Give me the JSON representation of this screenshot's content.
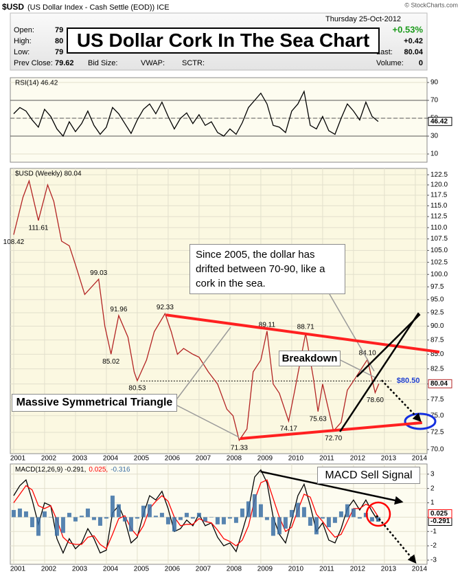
{
  "header": {
    "symbol": "$USD",
    "description": "(US Dollar Index - Cash Settle (EOD)) ICE",
    "copyright": "© StockCharts.com",
    "date": "Thursday 25-Oct-2012",
    "title": "US Dollar Cork In The Sea Chart",
    "fields": [
      {
        "label": "Open:",
        "value": "79"
      },
      {
        "label": "High:",
        "value": "80"
      },
      {
        "label": "Low:",
        "value": "79"
      },
      {
        "label": "Prev Close:",
        "value": "79.62"
      }
    ],
    "mid_fields": [
      "Bid Size:",
      "VWAP:",
      "SCTR:"
    ],
    "change_pct": "+0.53%",
    "change": "+0.42",
    "last_label": "Last:",
    "last": "80.04",
    "volume_label": "Volume:",
    "volume": "0"
  },
  "callouts": [
    "Since 2005, the dollar has drifted between 70-90, like a cork in the sea.",
    "Breakdown",
    "Massive Symmetrical Triangle",
    "MACD Sell Signal"
  ],
  "chart_data": [
    {
      "type": "line",
      "legend": "RSI(14) 46.42",
      "background": "#fdfcf0",
      "grid": true,
      "xlim": [
        2000.89,
        2014.38
      ],
      "ylim": [
        0.8,
        95.4
      ],
      "yticks": [
        90,
        70,
        50,
        30,
        10
      ],
      "levels": [
        {
          "value": 70,
          "style": "solid"
        },
        {
          "value": 50,
          "style": "dashed"
        },
        {
          "value": 30,
          "style": "solid"
        }
      ],
      "x": [
        2001.0,
        2001.2,
        2001.4,
        2001.6,
        2001.8,
        2002.0,
        2002.2,
        2002.4,
        2002.6,
        2002.8,
        2003.0,
        2003.2,
        2003.4,
        2003.6,
        2003.8,
        2004.0,
        2004.2,
        2004.4,
        2004.6,
        2004.8,
        2005.0,
        2005.2,
        2005.4,
        2005.6,
        2005.8,
        2006.0,
        2006.2,
        2006.4,
        2006.6,
        2006.8,
        2007.0,
        2007.2,
        2007.4,
        2007.6,
        2007.8,
        2008.0,
        2008.2,
        2008.4,
        2008.6,
        2008.8,
        2009.0,
        2009.2,
        2009.4,
        2009.6,
        2009.8,
        2010.0,
        2010.2,
        2010.4,
        2010.6,
        2010.8,
        2011.0,
        2011.2,
        2011.4,
        2011.6,
        2011.8,
        2012.0,
        2012.2,
        2012.4,
        2012.6,
        2012.8
      ],
      "series": [
        {
          "name": "RSI(14)",
          "color": "#000000",
          "tag": true,
          "values": [
            55,
            62,
            58,
            48,
            40,
            60,
            52,
            38,
            30,
            46,
            35,
            44,
            58,
            42,
            32,
            40,
            62,
            55,
            44,
            33,
            48,
            60,
            66,
            55,
            68,
            52,
            38,
            50,
            56,
            44,
            54,
            42,
            46,
            34,
            30,
            38,
            32,
            45,
            62,
            70,
            78,
            66,
            42,
            40,
            34,
            58,
            66,
            80,
            42,
            38,
            52,
            36,
            32,
            50,
            66,
            58,
            48,
            68,
            52,
            46.42
          ]
        }
      ]
    },
    {
      "type": "line",
      "legend": "$USD (Weekly) 80.04",
      "background": "#fbf8e1",
      "grid": true,
      "log": true,
      "xlim": [
        2000.89,
        2014.38
      ],
      "ylim": [
        69.42,
        124.1
      ],
      "xticks": [
        2001,
        2002,
        2003,
        2004,
        2005,
        2006,
        2007,
        2008,
        2009,
        2010,
        2011,
        2012,
        2013,
        2014
      ],
      "yticks": [
        {
          "value": 70,
          "label": "70.0"
        },
        72.5,
        {
          "value": 75,
          "label": "75.0"
        },
        77.5,
        {
          "value": 80,
          "label": "80.0"
        },
        82.5,
        {
          "value": 85,
          "label": "85.0"
        },
        87.5,
        {
          "value": 90,
          "label": "90.0"
        },
        92.5,
        {
          "value": 95,
          "label": "95.0"
        },
        97.5,
        {
          "value": 100,
          "label": "100.0"
        },
        102.5,
        {
          "value": 105,
          "label": "105.0"
        },
        107.5,
        {
          "value": 110,
          "label": "110.0"
        },
        112.5,
        {
          "value": 115,
          "label": "115.0"
        },
        117.5,
        {
          "value": 120,
          "label": "120.0"
        },
        122.5
      ],
      "x": [
        2001.0,
        2001.3,
        2001.5,
        2001.8,
        2002.1,
        2002.3,
        2002.55,
        2002.8,
        2003.0,
        2003.3,
        2003.75,
        2003.95,
        2004.15,
        2004.4,
        2004.7,
        2004.9,
        2005.0,
        2005.3,
        2005.55,
        2005.9,
        2006.1,
        2006.3,
        2006.5,
        2006.8,
        2007.0,
        2007.3,
        2007.6,
        2007.9,
        2008.1,
        2008.3,
        2008.55,
        2008.75,
        2009.0,
        2009.2,
        2009.4,
        2009.6,
        2009.9,
        2010.1,
        2010.45,
        2010.7,
        2010.85,
        2011.0,
        2011.35,
        2011.6,
        2011.8,
        2012.0,
        2012.45,
        2012.7,
        2012.82
      ],
      "series": [
        {
          "name": "$USD",
          "color": "#b22222",
          "tag": true,
          "values": [
            108.42,
            117,
            121,
            111.61,
            120,
            116,
            107,
            106,
            102,
            96,
            99.03,
            90,
            85.02,
            91.96,
            88,
            82,
            80.53,
            84,
            89,
            92.33,
            89,
            85,
            86,
            85,
            84.5,
            82,
            80,
            76,
            75,
            71.33,
            73,
            82,
            84,
            89.11,
            80,
            78.5,
            74.17,
            79,
            88.71,
            81,
            75.63,
            80,
            72.7,
            74,
            79,
            80.5,
            84.1,
            78.6,
            80.04
          ]
        }
      ],
      "peak_labels": [
        {
          "x": 2003.75,
          "value": 99.03
        },
        {
          "x": 2004.4,
          "value": 91.96
        },
        {
          "x": 2005.9,
          "value": 92.33
        },
        {
          "x": 2009.2,
          "value": 89.11
        },
        {
          "x": 2010.45,
          "value": 88.71
        },
        {
          "x": 2012.45,
          "value": 84.1,
          "label": "84.10"
        }
      ],
      "trough_labels": [
        {
          "x": 2001.0,
          "value": 108.42
        },
        {
          "x": 2001.8,
          "value": 111.61
        },
        {
          "x": 2004.15,
          "value": 85.02
        },
        {
          "x": 2005.0,
          "value": 80.53
        },
        {
          "x": 2008.3,
          "value": 71.33
        },
        {
          "x": 2009.9,
          "value": 74.17
        },
        {
          "x": 2010.85,
          "value": 75.63
        },
        {
          "x": 2011.35,
          "value": 72.7,
          "label": "72.70"
        },
        {
          "x": 2012.7,
          "value": 78.6,
          "label": "78.60"
        }
      ],
      "reference_line": {
        "x": [
          2005.11,
          2013.22
        ],
        "value": 80.5,
        "label": "$80.50",
        "color": "#1f3fd0"
      },
      "trendlines": [
        {
          "x": [
            2005.93,
            2014.78
          ],
          "y": [
            92.08,
            85.39
          ],
          "color": "#ff2020",
          "style": "solid",
          "width": 4
        },
        {
          "x": [
            2008.33,
            2014.22
          ],
          "y": [
            71.58,
            73.93
          ],
          "color": "#ff2020",
          "style": "solid",
          "width": 4
        },
        {
          "x": [
            2011.56,
            2014.11
          ],
          "y": [
            72.59,
            92.47
          ],
          "color": "#000000",
          "style": "solid",
          "width": 2.5
        },
        {
          "x": [
            2012.11,
            2014.15
          ],
          "y": [
            81.19,
            92.2
          ],
          "color": "#000000",
          "style": "solid",
          "width": 2.5
        },
        {
          "x": [
            2012.91,
            2014.16
          ],
          "y": [
            80.62,
            74.24
          ],
          "color": "#000000",
          "style": "dotted",
          "width": 2.5,
          "arrow": true
        }
      ]
    },
    {
      "type": "line",
      "legend_parts": [
        "MACD(12,26,9) -0.291,",
        "0.025,",
        "-0.316"
      ],
      "background": "#fdfcf0",
      "grid": true,
      "xlim": [
        2000.89,
        2014.38
      ],
      "ylim": [
        -3.29,
        3.71
      ],
      "xticks": [
        2001,
        2002,
        2003,
        2004,
        2005,
        2006,
        2007,
        2008,
        2009,
        2010,
        2011,
        2012,
        2013,
        2014
      ],
      "yticks": [
        3,
        2,
        1,
        0,
        -1,
        -2,
        -3
      ],
      "x": [
        2001.0,
        2001.2,
        2001.4,
        2001.6,
        2001.8,
        2002.0,
        2002.2,
        2002.4,
        2002.6,
        2002.8,
        2003.0,
        2003.2,
        2003.4,
        2003.6,
        2003.8,
        2004.0,
        2004.2,
        2004.4,
        2004.6,
        2004.8,
        2005.0,
        2005.2,
        2005.4,
        2005.6,
        2005.8,
        2006.0,
        2006.2,
        2006.4,
        2006.6,
        2006.8,
        2007.0,
        2007.2,
        2007.4,
        2007.6,
        2007.8,
        2008.0,
        2008.2,
        2008.4,
        2008.6,
        2008.8,
        2009.0,
        2009.2,
        2009.4,
        2009.6,
        2009.8,
        2010.0,
        2010.2,
        2010.4,
        2010.6,
        2010.8,
        2011.0,
        2011.2,
        2011.4,
        2011.6,
        2011.8,
        2012.0,
        2012.2,
        2012.4,
        2012.6,
        2012.8
      ],
      "series": [
        {
          "name": "MACD",
          "color": "#000000",
          "tag": true,
          "values": [
            1.5,
            2.2,
            2.6,
            1.2,
            -0.5,
            1.0,
            0.8,
            -1.5,
            -2.5,
            -1.5,
            -2.2,
            -1.8,
            -0.8,
            -1.5,
            -2.5,
            -2.3,
            0.3,
            0.8,
            -0.2,
            -1.8,
            -1.4,
            0.2,
            1.5,
            1.2,
            1.8,
            0.6,
            -1.0,
            -0.8,
            -0.2,
            -0.6,
            0.2,
            -0.6,
            -0.4,
            -1.4,
            -2.0,
            -1.8,
            -2.4,
            -1.0,
            0.5,
            2.8,
            3.3,
            2.4,
            0.0,
            -1.2,
            -1.8,
            -0.2,
            1.5,
            2.3,
            0.8,
            -1.0,
            -0.4,
            -1.6,
            -1.8,
            -0.8,
            0.6,
            1.2,
            0.5,
            1.2,
            0.4,
            -0.291
          ]
        },
        {
          "name": "Signal",
          "color": "#ff0000",
          "tag": true,
          "values": [
            1.0,
            1.6,
            2.2,
            1.9,
            0.8,
            0.6,
            0.8,
            -0.2,
            -1.4,
            -1.8,
            -1.9,
            -1.9,
            -1.4,
            -1.3,
            -1.9,
            -2.2,
            -1.2,
            -0.1,
            0.1,
            -0.8,
            -1.3,
            -0.6,
            0.6,
            1.1,
            1.5,
            1.1,
            0.0,
            -0.6,
            -0.5,
            -0.5,
            -0.1,
            -0.3,
            -0.4,
            -0.9,
            -1.5,
            -1.7,
            -2.0,
            -1.6,
            -0.6,
            1.2,
            2.4,
            2.6,
            1.3,
            0.0,
            -1.0,
            -0.7,
            0.5,
            1.6,
            1.4,
            0.2,
            -0.3,
            -0.9,
            -1.4,
            -1.2,
            -0.3,
            0.6,
            0.6,
            0.9,
            0.7,
            0.025
          ]
        },
        {
          "name": "Histogram",
          "color": "#3a6ea5",
          "kind": "bar",
          "values": [
            0.5,
            0.6,
            0.4,
            -0.7,
            -1.3,
            0.4,
            0.0,
            -1.3,
            -1.1,
            0.3,
            -0.3,
            0.1,
            0.6,
            -0.2,
            -0.6,
            -0.1,
            1.5,
            0.9,
            -0.3,
            -1.0,
            -0.1,
            0.8,
            0.9,
            0.1,
            0.3,
            -0.5,
            -1.0,
            -0.2,
            0.3,
            -0.1,
            0.3,
            -0.3,
            0.0,
            -0.5,
            -0.5,
            -0.1,
            -0.4,
            0.6,
            1.1,
            1.6,
            0.9,
            -0.2,
            -1.3,
            -1.2,
            -0.8,
            0.5,
            1.0,
            0.7,
            -0.6,
            -1.2,
            -0.1,
            -0.7,
            -0.4,
            0.4,
            0.9,
            0.6,
            -0.1,
            0.3,
            -0.3,
            -0.316
          ]
        }
      ],
      "trendlines": [
        {
          "x": [
            2008.99,
            2013.56
          ],
          "y": [
            3.18,
            1.07
          ],
          "color": "#000000",
          "style": "solid",
          "width": 2.5,
          "arrow": true
        },
        {
          "x": [
            2012.74,
            2014.0
          ],
          "y": [
            0.11,
            -3.15
          ],
          "color": "#000000",
          "style": "dotted",
          "width": 2.5,
          "arrow": true
        }
      ]
    }
  ]
}
